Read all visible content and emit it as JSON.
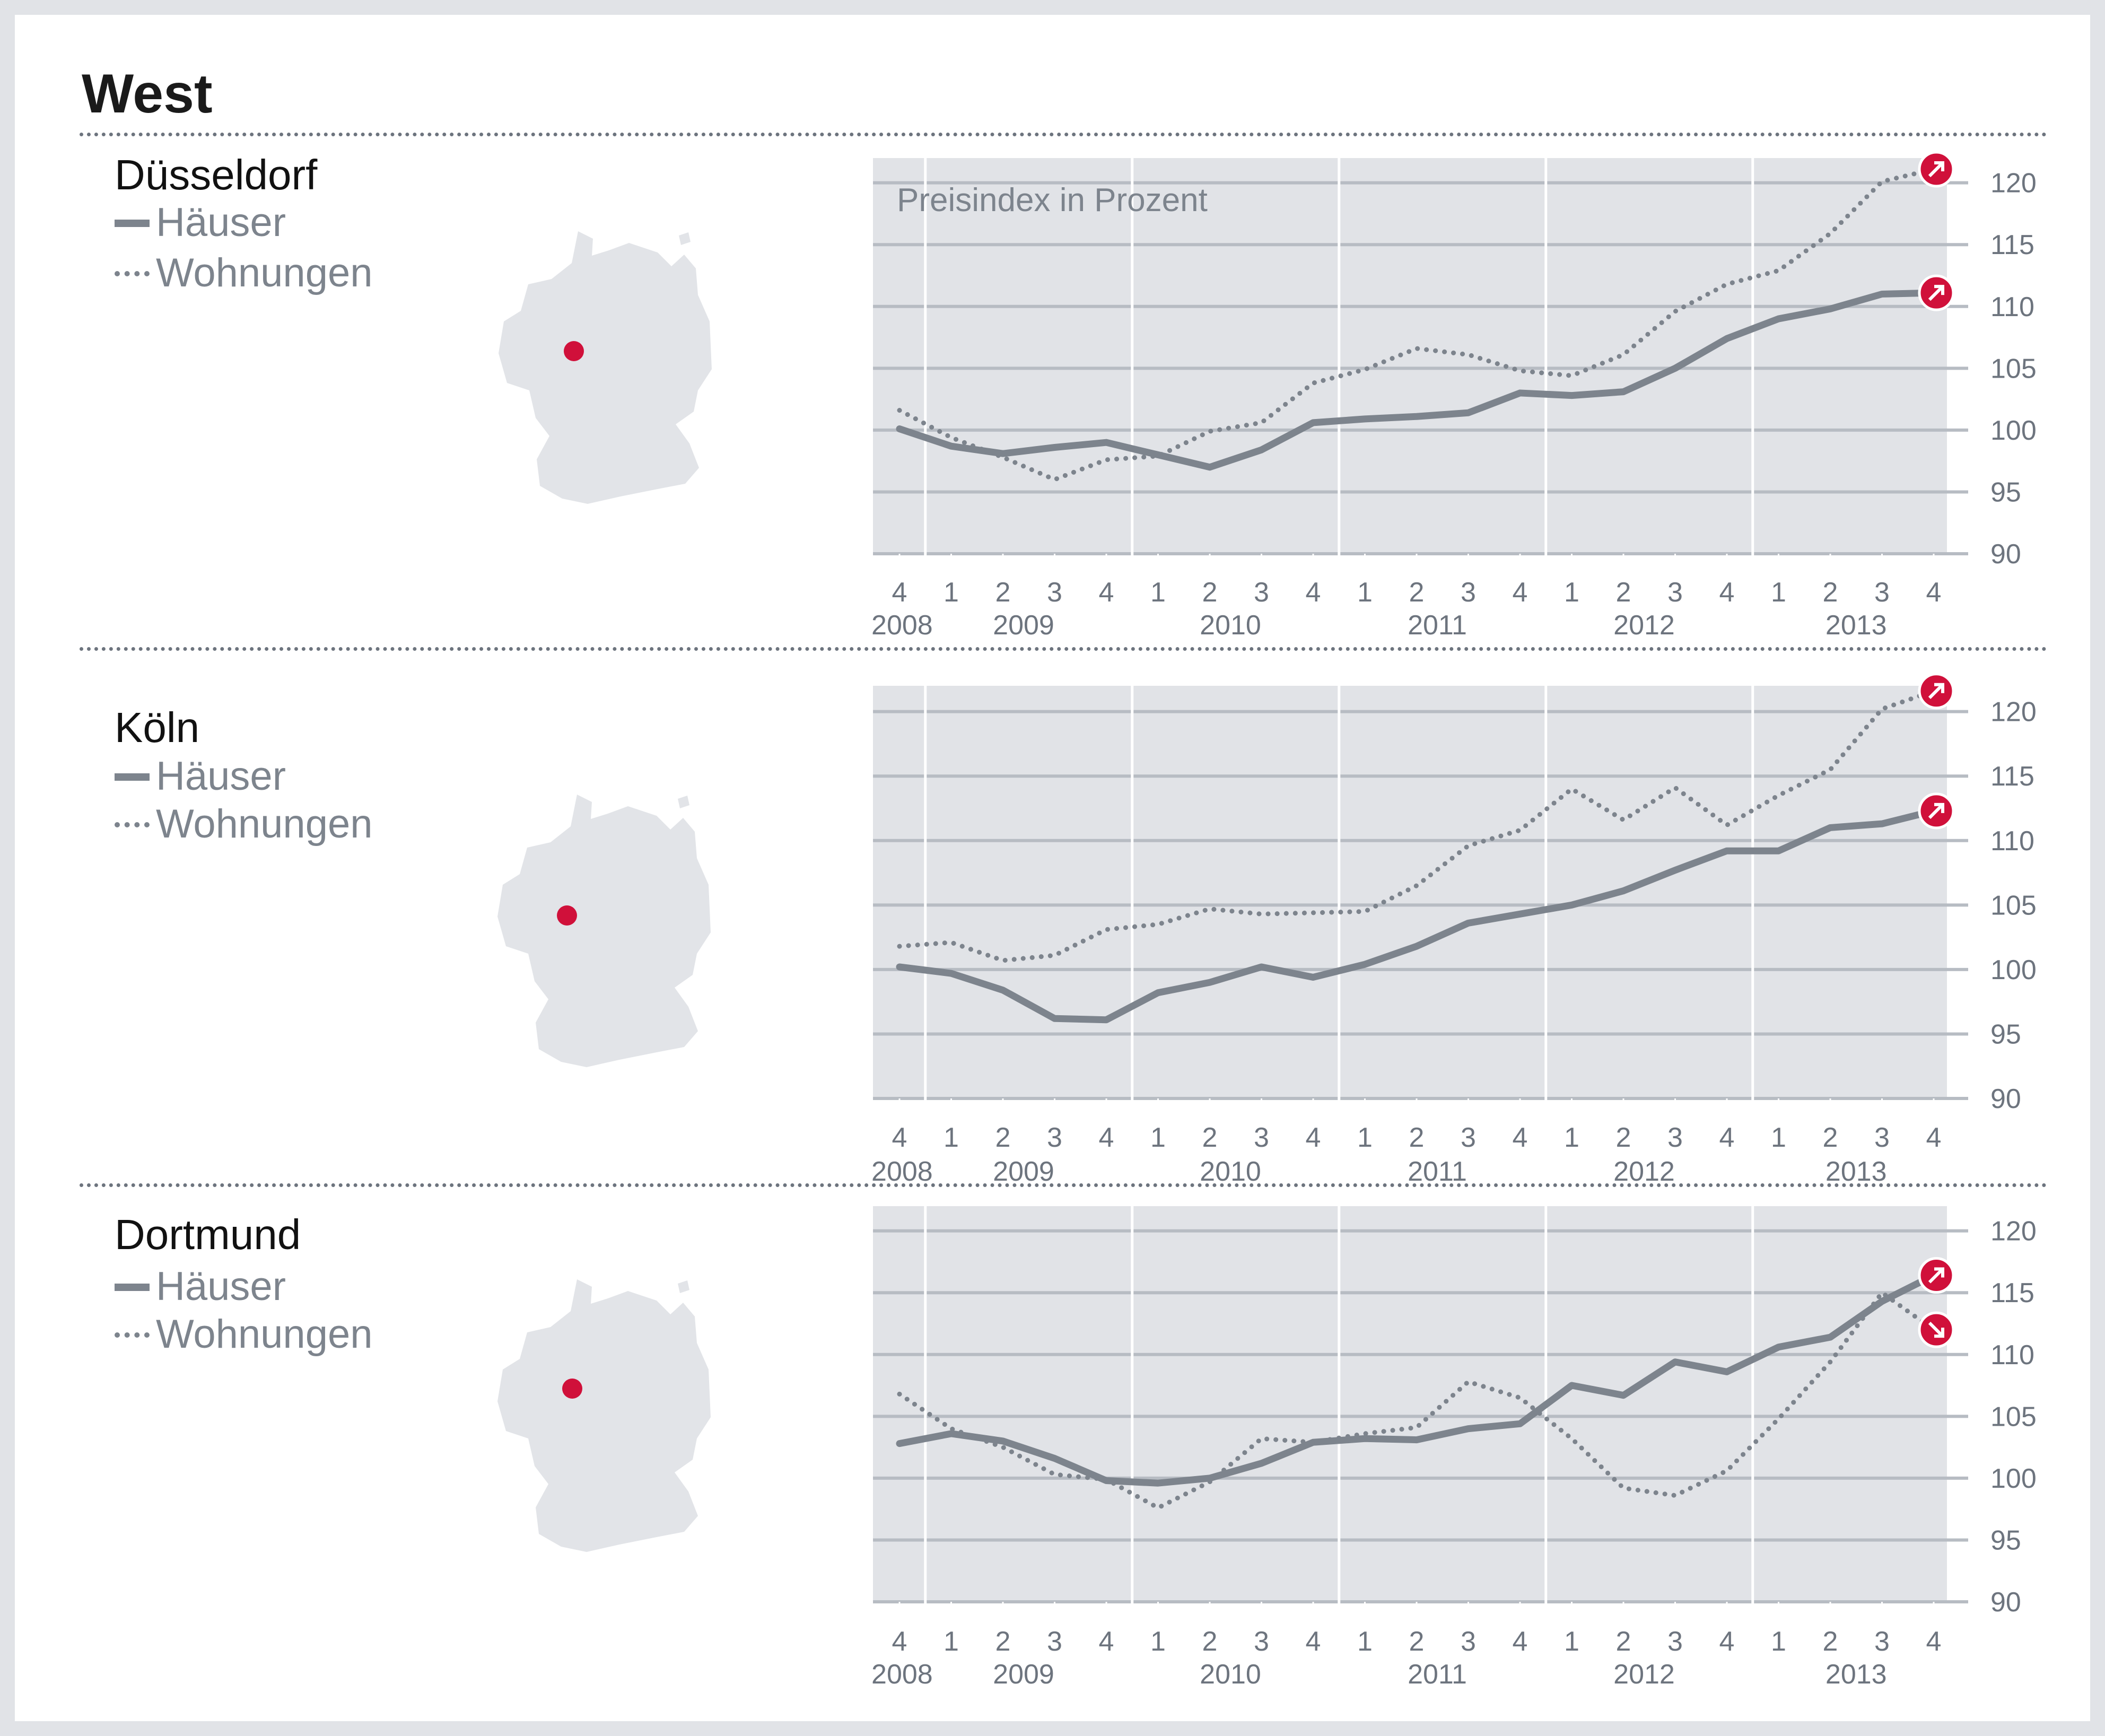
{
  "title": "West",
  "legend": {
    "solid_label": "Häuser",
    "dotted_label": "Wohnungen"
  },
  "colors": {
    "background": "#e1e3e7",
    "plot_background": "#e1e3e7",
    "line": "#7d848d",
    "grid": "#b7bcc3",
    "marker": "#d0103a",
    "map": "#e2e4e8"
  },
  "icons": {
    "up": "arrow-up-right-icon",
    "down": "arrow-down-right-icon",
    "map": "germany-map-icon",
    "pin": "location-dot-icon"
  },
  "chart_data": [
    {
      "type": "line",
      "title": "Düsseldorf",
      "annotation": "Preisindex in Prozent",
      "x": [
        "4",
        "1",
        "2",
        "3",
        "4",
        "1",
        "2",
        "3",
        "4",
        "1",
        "2",
        "3",
        "4",
        "1",
        "2",
        "3",
        "4",
        "1",
        "2",
        "3",
        "4"
      ],
      "x_year_labels": [
        "2008",
        "2009",
        "2010",
        "2011",
        "2012",
        "2013"
      ],
      "ylim": [
        90,
        122
      ],
      "yticks": [
        "90",
        "95",
        "100",
        "105",
        "110",
        "115",
        "120"
      ],
      "grid": true,
      "series": [
        {
          "name": "Häuser",
          "style": "solid",
          "trend": "up",
          "values": [
            100.1,
            98.7,
            98.1,
            98.6,
            99.0,
            98.0,
            97.0,
            98.4,
            100.6,
            100.9,
            101.1,
            101.4,
            103.0,
            102.8,
            103.1,
            105.0,
            107.4,
            109.0,
            109.8,
            111.0,
            111.1
          ]
        },
        {
          "name": "Wohnungen",
          "style": "dotted",
          "trend": "up",
          "values": [
            101.6,
            99.4,
            97.8,
            96.0,
            97.6,
            97.9,
            99.9,
            100.6,
            103.8,
            104.9,
            106.6,
            106.1,
            104.8,
            104.4,
            106.1,
            109.6,
            111.8,
            112.9,
            115.9,
            120.1,
            121.1
          ]
        }
      ]
    },
    {
      "type": "line",
      "title": "Köln",
      "x": [
        "4",
        "1",
        "2",
        "3",
        "4",
        "1",
        "2",
        "3",
        "4",
        "1",
        "2",
        "3",
        "4",
        "1",
        "2",
        "3",
        "4",
        "1",
        "2",
        "3",
        "4"
      ],
      "x_year_labels": [
        "2008",
        "2009",
        "2010",
        "2011",
        "2012",
        "2013"
      ],
      "ylim": [
        90,
        122
      ],
      "yticks": [
        "90",
        "95",
        "100",
        "105",
        "110",
        "115",
        "120"
      ],
      "grid": true,
      "series": [
        {
          "name": "Häuser",
          "style": "solid",
          "trend": "up",
          "values": [
            100.2,
            99.7,
            98.4,
            96.2,
            96.1,
            98.2,
            99.0,
            100.2,
            99.4,
            100.4,
            101.8,
            103.6,
            104.3,
            105.0,
            106.1,
            107.7,
            109.2,
            109.2,
            111.0,
            111.3,
            112.3
          ]
        },
        {
          "name": "Wohnungen",
          "style": "dotted",
          "trend": "up",
          "values": [
            101.8,
            102.1,
            100.7,
            101.1,
            103.1,
            103.5,
            104.7,
            104.3,
            104.4,
            104.5,
            106.5,
            109.6,
            110.8,
            114.0,
            111.6,
            114.1,
            111.2,
            113.5,
            115.5,
            120.2,
            121.6
          ]
        }
      ]
    },
    {
      "type": "line",
      "title": "Dortmund",
      "x": [
        "4",
        "1",
        "2",
        "3",
        "4",
        "1",
        "2",
        "3",
        "4",
        "1",
        "2",
        "3",
        "4",
        "1",
        "2",
        "3",
        "4",
        "1",
        "2",
        "3",
        "4"
      ],
      "x_year_labels": [
        "2008",
        "2009",
        "2010",
        "2011",
        "2012",
        "2013"
      ],
      "ylim": [
        90,
        122
      ],
      "yticks": [
        "90",
        "95",
        "100",
        "105",
        "110",
        "115",
        "120"
      ],
      "grid": true,
      "series": [
        {
          "name": "Häuser",
          "style": "solid",
          "trend": "up",
          "values": [
            102.8,
            103.6,
            103.0,
            101.6,
            99.8,
            99.6,
            100.0,
            101.2,
            102.9,
            103.2,
            103.1,
            104.0,
            104.4,
            107.5,
            106.7,
            109.4,
            108.6,
            110.6,
            111.4,
            114.3,
            116.4
          ]
        },
        {
          "name": "Wohnungen",
          "style": "dotted",
          "trend": "down",
          "values": [
            106.8,
            104.0,
            102.5,
            100.3,
            99.9,
            97.6,
            99.7,
            103.2,
            102.9,
            103.6,
            104.1,
            107.8,
            106.5,
            103.2,
            99.2,
            98.6,
            100.6,
            104.8,
            109.4,
            115.0,
            112.0
          ]
        }
      ]
    }
  ]
}
